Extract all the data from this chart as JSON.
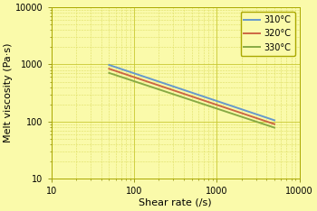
{
  "title": "",
  "xlabel": "Shear rate (/s)",
  "ylabel": "Melt viscosity (Pa·s)",
  "background_color": "#fafaaa",
  "plot_bg_color": "#fafaaa",
  "grid_major_color": "#c8c832",
  "grid_minor_color": "#dede64",
  "xmin": 10,
  "xmax": 10000,
  "ymin": 10,
  "ymax": 10000,
  "series": [
    {
      "label": "310°C",
      "color": "#6699cc",
      "x_start": 50,
      "x_end": 5000,
      "y_start": 980,
      "y_end": 105
    },
    {
      "label": "320°C",
      "color": "#cc6644",
      "x_start": 50,
      "x_end": 5000,
      "y_start": 840,
      "y_end": 90
    },
    {
      "label": "330°C",
      "color": "#88aa44",
      "x_start": 50,
      "x_end": 5000,
      "y_start": 710,
      "y_end": 78
    }
  ],
  "legend_fontsize": 7,
  "axis_label_fontsize": 8,
  "tick_fontsize": 7,
  "line_width": 1.4
}
